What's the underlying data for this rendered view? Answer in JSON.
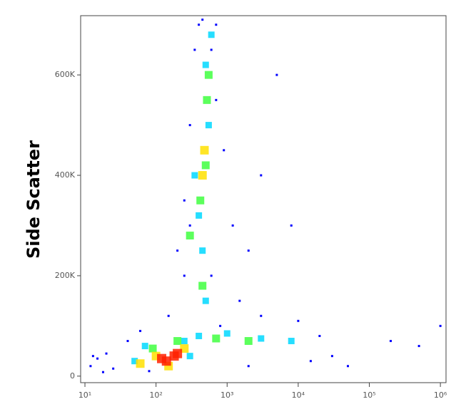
{
  "chart_data": {
    "type": "scatter",
    "ylabel": "Side Scatter",
    "xscale": "log",
    "xlim": [
      8.7,
      1200000
    ],
    "ylim": [
      -13000,
      718000
    ],
    "xticks": [
      {
        "value": 10,
        "label": "10¹"
      },
      {
        "value": 100,
        "label": "10²"
      },
      {
        "value": 1000,
        "label": "10³"
      },
      {
        "value": 10000,
        "label": "10⁴"
      },
      {
        "value": 100000,
        "label": "10⁵"
      },
      {
        "value": 1000000,
        "label": "10⁶"
      }
    ],
    "yticks": [
      0,
      {
        "value": 200000,
        "label": "200K"
      },
      {
        "value": 400000,
        "label": "400K"
      },
      {
        "value": 600000,
        "label": "600K"
      }
    ],
    "series": [
      {
        "color": "#0000ff",
        "x": [
          12,
          15,
          20,
          25,
          40,
          60,
          150,
          200,
          250,
          300,
          350,
          400,
          700,
          900,
          1200,
          2000,
          3000,
          5000,
          8000,
          1500,
          600,
          800,
          3000,
          10000,
          20000,
          30000,
          50000,
          200000,
          500000,
          1000000,
          15000,
          13,
          18,
          80,
          2000,
          600,
          450,
          300,
          250,
          700
        ],
        "y": [
          20000,
          35000,
          45000,
          15000,
          70000,
          90000,
          120000,
          250000,
          350000,
          500000,
          650000,
          700000,
          700000,
          450000,
          300000,
          250000,
          400000,
          600000,
          300000,
          150000,
          200000,
          100000,
          120000,
          110000,
          80000,
          40000,
          20000,
          70000,
          60000,
          100000,
          30000,
          40000,
          8000,
          10000,
          20000,
          650000,
          710000,
          300000,
          200000,
          550000
        ]
      },
      {
        "color": "#00d8ff",
        "x": [
          50,
          70,
          300,
          400,
          1000,
          3000,
          8000,
          500,
          450,
          400,
          500,
          600,
          350,
          550,
          250
        ],
        "y": [
          30000,
          60000,
          40000,
          80000,
          85000,
          75000,
          70000,
          150000,
          250000,
          320000,
          620000,
          680000,
          400000,
          500000,
          70000
        ]
      },
      {
        "color": "#40ff40",
        "x": [
          90,
          200,
          700,
          2000,
          450,
          420,
          500,
          520,
          300,
          550
        ],
        "y": [
          55000,
          70000,
          75000,
          70000,
          180000,
          350000,
          420000,
          550000,
          280000,
          600000
        ]
      },
      {
        "color": "#ffe000",
        "x": [
          100,
          250,
          480,
          450,
          150,
          60
        ],
        "y": [
          40000,
          55000,
          450000,
          400000,
          20000,
          25000
        ]
      },
      {
        "color": "#ff2000",
        "x": [
          120,
          180,
          140,
          200
        ],
        "y": [
          35000,
          40000,
          30000,
          45000
        ]
      }
    ]
  }
}
